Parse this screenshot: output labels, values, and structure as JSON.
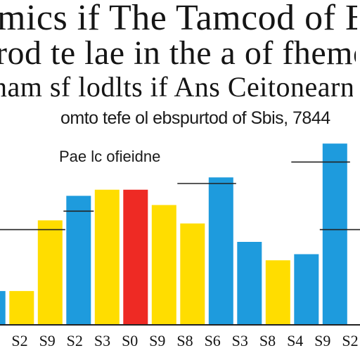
{
  "header": {
    "title_line1": "mics if The Tamcod of Blctic",
    "title_line2": "rod te lae in the a of fhemolts",
    "title_line3": "nam sf lodlts if Ans Ceitonearn",
    "subtitle": "omto tefe ol ebspurtod of Sbis, 7844",
    "annotation": "Pae lc ofieidne"
  },
  "colors": {
    "blue": "#1E9BDD",
    "yellow": "#FFDD00",
    "red": "#EE2A24",
    "axis": "#222222",
    "text": "#151515"
  },
  "chart_data": {
    "type": "bar",
    "categories": [
      "",
      "2",
      "",
      "3",
      "",
      "3",
      "",
      "9",
      "",
      "3",
      "",
      "3",
      "",
      "3",
      ""
    ],
    "values": [
      11,
      11,
      34,
      42,
      44,
      44,
      39,
      33,
      48,
      27,
      21,
      23,
      59,
      0,
      0
    ],
    "bar_colors": [
      "blue",
      "yellow",
      "yellow",
      "blue",
      "yellow",
      "red",
      "yellow",
      "yellow",
      "blue",
      "blue",
      "yellow",
      "blue",
      "blue",
      "blue",
      "blue"
    ],
    "reference_lines": [
      {
        "value": 31,
        "from": 0,
        "to": 2
      },
      {
        "value": 37,
        "from": 3,
        "to": 3
      },
      {
        "value": 46,
        "from": 7,
        "to": 8
      },
      {
        "value": 53,
        "from": 11,
        "to": 12
      },
      {
        "value": 31,
        "from": 12,
        "to": 14
      }
    ],
    "x_tick_glyphs": [
      "S2",
      "S9",
      "S2",
      "S3",
      "S0",
      "S9",
      "S8",
      "S6",
      "S3",
      "S8",
      "S4",
      "S9",
      "S2"
    ],
    "title": "",
    "xlabel": "",
    "ylabel": "",
    "ylim": [
      0,
      65
    ],
    "grid": false,
    "legend": "none"
  }
}
